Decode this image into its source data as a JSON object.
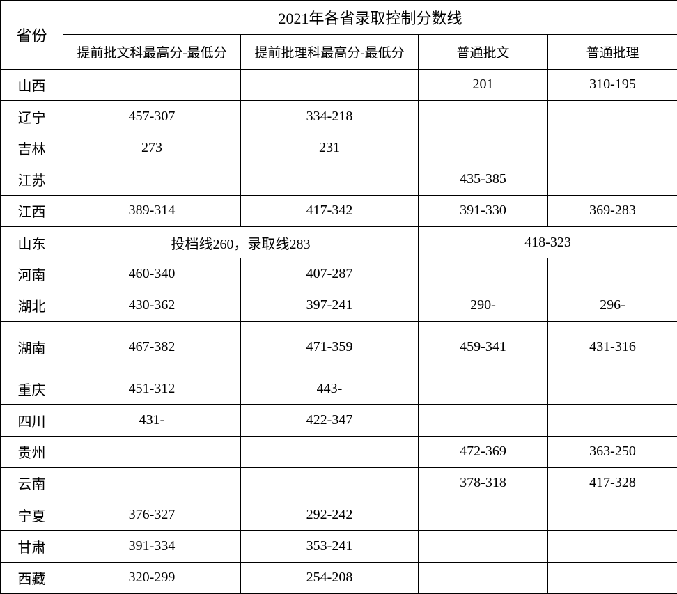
{
  "table": {
    "title": "2021年各省录取控制分数线",
    "province_header": "省份",
    "columns": [
      "提前批文科最高分-最低分",
      "提前批理科最高分-最低分",
      "普通批文",
      "普通批理"
    ],
    "rows": [
      {
        "province": "山西",
        "c1": "",
        "c2": "",
        "c3": "201",
        "c4": "310-195"
      },
      {
        "province": "辽宁",
        "c1": "457-307",
        "c2": "334-218",
        "c3": "",
        "c4": ""
      },
      {
        "province": "吉林",
        "c1": "273",
        "c2": "231",
        "c3": "",
        "c4": ""
      },
      {
        "province": "江苏",
        "c1": "",
        "c2": "",
        "c3": "435-385",
        "c4": ""
      },
      {
        "province": "江西",
        "c1": "389-314",
        "c2": "417-342",
        "c3": "391-330",
        "c4": "369-283"
      },
      {
        "province": "山东",
        "merged_left": "投档线260，录取线283",
        "merged_right": "418-323"
      },
      {
        "province": "河南",
        "c1": "460-340",
        "c2": "407-287",
        "c3": "",
        "c4": ""
      },
      {
        "province": "湖北",
        "c1": "430-362",
        "c2": "397-241",
        "c3": "290-",
        "c4": "296-"
      },
      {
        "province": "湖南",
        "c1": "467-382",
        "c2": "471-359",
        "c3": "459-341",
        "c4": "431-316",
        "tall": true
      },
      {
        "province": "重庆",
        "c1": "451-312",
        "c2": "443-",
        "c3": "",
        "c4": ""
      },
      {
        "province": "四川",
        "c1": "431-",
        "c2": "422-347",
        "c3": "",
        "c4": ""
      },
      {
        "province": "贵州",
        "c1": "",
        "c2": "",
        "c3": "472-369",
        "c4": "363-250"
      },
      {
        "province": "云南",
        "c1": "",
        "c2": "",
        "c3": "378-318",
        "c4": "417-328"
      },
      {
        "province": "宁夏",
        "c1": "376-327",
        "c2": "292-242",
        "c3": "",
        "c4": ""
      },
      {
        "province": "甘肃",
        "c1": "391-334",
        "c2": "353-241",
        "c3": "",
        "c4": ""
      },
      {
        "province": "西藏",
        "c1": "320-299",
        "c2": "254-208",
        "c3": "",
        "c4": ""
      }
    ],
    "styling": {
      "border_color": "#000000",
      "border_width": 1.5,
      "background_color": "#ffffff",
      "text_color": "#000000",
      "title_fontsize": 22,
      "header_fontsize": 19,
      "cell_fontsize": 20,
      "font_family": "SimSun",
      "col_widths": {
        "province": 90,
        "col1": 255,
        "col2": 255,
        "col3": 186,
        "col4": 186
      }
    }
  }
}
